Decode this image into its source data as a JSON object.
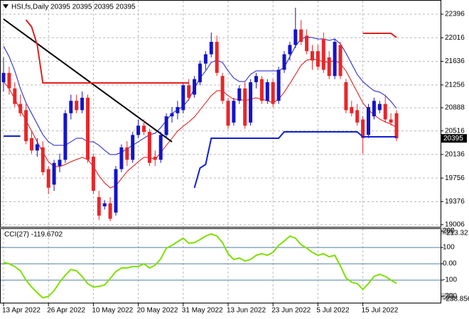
{
  "chart_data": [
    {
      "type": "candlestick",
      "title": "HSI,fs,Daily  20395 20395 20395 20395",
      "last_price": 20395,
      "categories": [
        "13 Apr 2022",
        null,
        null,
        null,
        null,
        null,
        null,
        null,
        "26 Apr 2022",
        null,
        null,
        null,
        null,
        null,
        null,
        null,
        "10 May 2022",
        null,
        null,
        null,
        null,
        null,
        null,
        null,
        "20 May 2022",
        null,
        null,
        null,
        null,
        null,
        null,
        null,
        "31 May 2022",
        null,
        null,
        null,
        null,
        null,
        null,
        null,
        "13 Jun 2022",
        null,
        null,
        null,
        null,
        null,
        null,
        null,
        "23 Jun 2022",
        null,
        null,
        null,
        null,
        null,
        null,
        null,
        "5 Jul 2022",
        null,
        null,
        null,
        null,
        null,
        null,
        null,
        "15 Jul 2022",
        null,
        null,
        null,
        null,
        null,
        null
      ],
      "open": [
        21300,
        21450,
        21200,
        20950,
        20850,
        20400,
        20200,
        20250,
        19900,
        19650,
        19950,
        20050,
        20800,
        21000,
        20850,
        21050,
        20100,
        19450,
        19300,
        19350,
        19200,
        19900,
        20250,
        20050,
        20450,
        20600,
        20500,
        20100,
        20050,
        20450,
        20750,
        20800,
        20850,
        21250,
        21100,
        21300,
        21600,
        21750,
        21950,
        21400,
        21000,
        20650,
        21000,
        21200,
        20650,
        21300,
        21350,
        21000,
        21300,
        21000,
        21500,
        21750,
        21900,
        22150,
        22050,
        21800,
        21800,
        22000,
        21700,
        21400,
        21900,
        21300,
        20900,
        20850,
        20700,
        20450,
        20750,
        20850,
        20950,
        20700,
        20800
      ],
      "high": [
        21700,
        21550,
        21300,
        21100,
        20950,
        20500,
        20400,
        20350,
        19950,
        20050,
        20150,
        20850,
        21100,
        21100,
        21150,
        21100,
        20150,
        19550,
        19400,
        19450,
        19950,
        20300,
        20350,
        20500,
        20700,
        20700,
        20550,
        20200,
        20500,
        20800,
        20900,
        21000,
        21300,
        21350,
        21400,
        21650,
        21800,
        22100,
        22050,
        21450,
        21050,
        21050,
        21250,
        21300,
        21350,
        21450,
        21400,
        21350,
        21350,
        21550,
        21800,
        21950,
        22500,
        22300,
        22150,
        21900,
        21900,
        22100,
        21800,
        22000,
        21950,
        21350,
        21000,
        20950,
        20750,
        20950,
        21050,
        21000,
        21100,
        20800,
        20850
      ],
      "low": [
        21150,
        21100,
        20900,
        20750,
        20300,
        20150,
        20100,
        19800,
        19500,
        19550,
        19850,
        20000,
        20700,
        20800,
        20800,
        20000,
        19500,
        19080,
        19250,
        19060,
        19150,
        19850,
        19950,
        20000,
        20400,
        20450,
        19950,
        19950,
        20000,
        20400,
        20650,
        20700,
        20800,
        21000,
        21050,
        21250,
        21500,
        21700,
        21400,
        20950,
        20550,
        20600,
        20950,
        20550,
        20600,
        21200,
        20950,
        20950,
        20900,
        20950,
        21450,
        21650,
        21850,
        21900,
        21750,
        21500,
        21500,
        21450,
        21350,
        21350,
        21350,
        20800,
        20750,
        20600,
        20150,
        20400,
        20700,
        20800,
        20650,
        20600,
        20350
      ],
      "close": [
        21450,
        21200,
        20950,
        20800,
        20350,
        20200,
        20300,
        19850,
        19600,
        20000,
        20050,
        20800,
        21000,
        20850,
        21050,
        20050,
        19550,
        19150,
        19350,
        19100,
        19900,
        20250,
        20050,
        20450,
        20600,
        20500,
        20000,
        20050,
        20450,
        20750,
        20800,
        20900,
        21250,
        21050,
        21350,
        21600,
        21750,
        21950,
        21450,
        21000,
        20600,
        21000,
        21200,
        20600,
        21300,
        21400,
        21000,
        21300,
        20950,
        21500,
        21750,
        21900,
        22150,
        21950,
        21800,
        21650,
        21550,
        21500,
        21400,
        21950,
        21400,
        20850,
        20800,
        20650,
        20400,
        20900,
        21000,
        20950,
        20700,
        20650,
        20395
      ],
      "up_color": "#1414c8",
      "down_color": "#e8262a",
      "series": [
        {
          "color": "#1a1acc",
          "line_width": 1,
          "values": [
            21882,
            21711,
            21482,
            21197,
            20968,
            20797,
            20626,
            20454,
            20340,
            20283,
            20283,
            20283,
            20340,
            20397,
            20397,
            20340,
            20340,
            20283,
            20203,
            20135,
            20135,
            20169,
            20226,
            20283,
            20340,
            20397,
            20454,
            20477,
            20569,
            20683,
            20797,
            20854,
            20911,
            21025,
            21197,
            21368,
            21482,
            21619,
            21654,
            21619,
            21482,
            21368,
            21311,
            21311,
            21425,
            21482,
            21482,
            21482,
            21482,
            21482,
            21539,
            21711,
            21882,
            21996,
            22030,
            22019,
            21996,
            21996,
            21973,
            21996,
            21916,
            21768,
            21596,
            21425,
            21311,
            21231,
            21162,
            21140,
            21083,
            20991,
            20877
          ]
        },
        {
          "color": "#dd1010",
          "line_width": 1,
          "values": [
            21311,
            21197,
            21025,
            20854,
            20683,
            20512,
            20340,
            20169,
            20020,
            19941,
            19941,
            19975,
            20020,
            20055,
            20089,
            20055,
            19941,
            19792,
            19678,
            19598,
            19632,
            19746,
            19861,
            19941,
            20020,
            20089,
            20089,
            20055,
            20169,
            20283,
            20397,
            20512,
            20591,
            20660,
            20740,
            20854,
            20968,
            21083,
            21162,
            21162,
            21083,
            21025,
            21025,
            21003,
            21025,
            21048,
            21025,
            21003,
            20968,
            21025,
            21140,
            21277,
            21425,
            21574,
            21654,
            21676,
            21654,
            21631,
            21619,
            21654,
            21596,
            21482,
            21311,
            21140,
            20968,
            20854,
            20774,
            20706,
            20660,
            20626,
            20569
          ]
        },
        {
          "color": "#e02020",
          "line_width": 2,
          "values": [
            null,
            null,
            null,
            null,
            22305,
            22190,
            21900,
            21288,
            21288,
            21288,
            21288,
            21288,
            21288,
            21288,
            21288,
            21288,
            21288,
            21288,
            21288,
            21288,
            21288,
            21288,
            21288,
            21288,
            21288,
            21288,
            21288,
            21288,
            21288,
            21288,
            21288,
            21288,
            21288,
            21288,
            null,
            null,
            null,
            null,
            null,
            null,
            null,
            null,
            null,
            null,
            null,
            null,
            null,
            null,
            null,
            null,
            null,
            null,
            null,
            null,
            null,
            null,
            null,
            null,
            null,
            null,
            null,
            null,
            null,
            null,
            22088,
            22088,
            22088,
            22088,
            22088,
            22088,
            22020
          ]
        },
        {
          "color": "#1020d0",
          "line_width": 2,
          "values": [
            20432,
            20432,
            20432,
            20432,
            null,
            null,
            null,
            null,
            null,
            null,
            null,
            null,
            null,
            null,
            null,
            null,
            null,
            null,
            null,
            null,
            null,
            null,
            null,
            null,
            null,
            null,
            null,
            null,
            null,
            null,
            null,
            null,
            null,
            null,
            19598,
            19918,
            19975,
            20397,
            20397,
            20397,
            20397,
            20397,
            20397,
            20397,
            20397,
            20397,
            20397,
            20397,
            20397,
            20397,
            20500,
            20500,
            20500,
            20500,
            20500,
            20500,
            20500,
            20500,
            20500,
            20500,
            20500,
            20500,
            20500,
            20500,
            20420,
            20420,
            20420,
            20420,
            20420,
            20420,
            20420
          ]
        }
      ],
      "trendlines": [
        {
          "color": "#000000",
          "start": [
            0,
            22316
          ],
          "end": [
            30,
            20340
          ]
        }
      ],
      "ylim": [
        18970,
        22590
      ],
      "yticks": [
        22396,
        22016,
        21636,
        21256,
        20888,
        20516,
        20136,
        19756,
        19376,
        19006
      ],
      "grid": true
    },
    {
      "type": "line",
      "title": "CCI(27) -119.6702",
      "color": "#7ee000",
      "values": [
        9,
        0,
        -17,
        -43,
        -100,
        -143,
        -178,
        -209,
        -200,
        -165,
        -113,
        -70,
        -35,
        -43,
        -78,
        -122,
        -143,
        -139,
        -130,
        -91,
        -48,
        -26,
        -26,
        -17,
        -17,
        0,
        -26,
        -9,
        30,
        96,
        113,
        135,
        157,
        126,
        130,
        148,
        170,
        183,
        170,
        130,
        61,
        26,
        35,
        17,
        26,
        52,
        61,
        52,
        70,
        113,
        139,
        170,
        157,
        117,
        96,
        70,
        52,
        61,
        43,
        52,
        -13,
        -87,
        -113,
        -122,
        -157,
        -122,
        -78,
        -65,
        -78,
        -100,
        -119.6702
      ],
      "ylim": [
        -238.856,
        213.3217
      ],
      "yticks": [
        200,
        100,
        {
          "value": 0,
          "label": "0.00"
        },
        -100,
        -200
      ],
      "grid": true,
      "grid_color": "#4f7fa0"
    }
  ]
}
